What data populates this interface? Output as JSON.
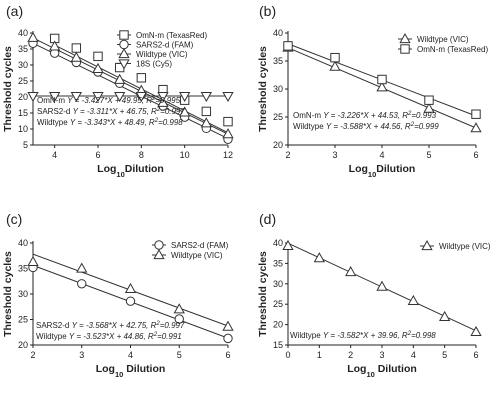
{
  "chart_data": [
    {
      "panel": "(a)",
      "type": "scatter",
      "xlabel": "Log10Dilution",
      "xlabel_main": "Log",
      "xlabel_sub": "10",
      "xlabel_rest": "Dilution",
      "ylabel": "Threshold cycles",
      "xlim": [
        3,
        12
      ],
      "ylim": [
        5,
        40
      ],
      "xticks": [
        4,
        6,
        8,
        10,
        12
      ],
      "yticks": [
        5,
        10,
        15,
        20,
        25,
        30,
        35,
        40
      ],
      "legend_position": "top-right",
      "series": [
        {
          "name": "OmN-m (TexasRed)",
          "marker": "square",
          "x": [
            4,
            5,
            6,
            7,
            8,
            9,
            10,
            11,
            12
          ],
          "y": [
            38.3,
            35.3,
            32.7,
            29.2,
            26.0,
            22.3,
            19.0,
            15.5,
            12.3
          ],
          "fit": {
            "slope": -3.427,
            "intercept": 49.95
          }
        },
        {
          "name": "SARS2-d (FAM)",
          "marker": "circle",
          "x": [
            3,
            4,
            5,
            6,
            7,
            8,
            9,
            10,
            11,
            12
          ],
          "y": [
            36.8,
            33.7,
            30.8,
            27.8,
            24.3,
            20.7,
            17.2,
            13.7,
            10.2,
            6.8
          ],
          "fit": {
            "slope": -3.311,
            "intercept": 46.75
          }
        },
        {
          "name": "Wildtype (VIC)",
          "marker": "triangle-up",
          "x": [
            3,
            4,
            5,
            6,
            7,
            8,
            9,
            10,
            11,
            12
          ],
          "y": [
            38.5,
            35.8,
            32.3,
            28.8,
            25.4,
            22.0,
            18.2,
            15.2,
            11.8,
            8.4
          ],
          "fit": {
            "slope": -3.343,
            "intercept": 48.49
          }
        },
        {
          "name": "18S (Cy5)",
          "marker": "triangle-down",
          "x": [
            3,
            4,
            5,
            6,
            7,
            8,
            9,
            10,
            11,
            12
          ],
          "y": [
            20.3,
            20.3,
            20.3,
            20.3,
            20.3,
            20.3,
            20.3,
            20.3,
            20.3,
            20.3
          ],
          "fit": {
            "slope": 0,
            "intercept": 20.3
          }
        }
      ],
      "equations": [
        {
          "name": "OmN-m",
          "text": "Y = -3.427*X + 49.95, R2=0.995",
          "lead": "OmN-m ",
          "body": "Y = -3.427*X + 49.95, R",
          "r2sup": "2",
          "tail": "=0.995"
        },
        {
          "name": "SARS2-d",
          "text": "Y = -3.311*X + 46.75, R2=0.997",
          "lead": "SARS2-d ",
          "body": "Y = -3.311*X + 46.75, R",
          "r2sup": "2",
          "tail": "=0.997"
        },
        {
          "name": "Wildtype",
          "text": "Y = -3.343*X + 48.49, R2=0.998",
          "lead": "Wildtype ",
          "body": "Y = -3.343*X + 48.49, R",
          "r2sup": "2",
          "tail": "=0.998"
        }
      ]
    },
    {
      "panel": "(b)",
      "type": "scatter",
      "xlabel": "Log10Dilution",
      "xlabel_main": "Log",
      "xlabel_sub": "10",
      "xlabel_rest": "Dilution",
      "ylabel": "Threshold cycles",
      "xlim": [
        2,
        6
      ],
      "ylim": [
        20,
        40
      ],
      "xticks": [
        2,
        3,
        4,
        5,
        6
      ],
      "yticks": [
        20,
        25,
        30,
        35,
        40
      ],
      "legend_position": "top-right",
      "series": [
        {
          "name": "Wildtype (VIC)",
          "marker": "triangle-up",
          "x": [
            2,
            3,
            4,
            5,
            6
          ],
          "y": [
            37.4,
            34.0,
            30.3,
            26.5,
            23.0
          ],
          "fit": {
            "slope": -3.588,
            "intercept": 44.56
          }
        },
        {
          "name": "OmN-m (TexasRed)",
          "marker": "square",
          "x": [
            2,
            3,
            4,
            5,
            6
          ],
          "y": [
            37.7,
            35.6,
            31.7,
            28.0,
            25.5
          ],
          "fit": {
            "slope": -3.226,
            "intercept": 44.53
          }
        }
      ],
      "equations": [
        {
          "name": "OmN-m",
          "text": "Y = -3.226*X + 44.53, R2=0.993",
          "lead": "OmN-m   ",
          "body": "Y = -3.226*X + 44.53, R",
          "r2sup": "2",
          "tail": "=0.993"
        },
        {
          "name": "Wildtype",
          "text": "Y = -3.588*X + 44.56, R2=0.999",
          "lead": "Wildtype ",
          "body": "Y = -3.588*X + 44.56, R",
          "r2sup": "2",
          "tail": "=0.999"
        }
      ]
    },
    {
      "panel": "(c)",
      "type": "scatter",
      "xlabel": "Log10 Dilution",
      "xlabel_main": "Log",
      "xlabel_sub": "10",
      "xlabel_rest": " Dilution",
      "ylabel": "Threshold cycles",
      "xlim": [
        2,
        6
      ],
      "ylim": [
        20,
        40
      ],
      "xticks": [
        2,
        3,
        4,
        5,
        6
      ],
      "yticks": [
        20,
        25,
        30,
        35,
        40
      ],
      "legend_position": "top-right",
      "series": [
        {
          "name": "SARS2-d (FAM)",
          "marker": "circle",
          "x": [
            2,
            3,
            4,
            5,
            6
          ],
          "y": [
            35.2,
            32.0,
            28.6,
            25.1,
            21.3
          ],
          "fit": {
            "slope": -3.568,
            "intercept": 42.75
          }
        },
        {
          "name": "Wildtype (VIC)",
          "marker": "triangle-up",
          "x": [
            2,
            3,
            4,
            5,
            6
          ],
          "y": [
            36.3,
            35.0,
            31.0,
            27.0,
            23.6
          ],
          "fit": {
            "slope": -3.523,
            "intercept": 44.86
          }
        }
      ],
      "equations": [
        {
          "name": "SARS2-d",
          "text": "Y = -3.568*X + 42.75, R2=0.997",
          "lead": "SARS2-d ",
          "body": "Y = -3.568*X + 42.75, R",
          "r2sup": "2",
          "tail": "=0.997"
        },
        {
          "name": "Wildtype",
          "text": "Y = -3.523*X + 44.86, R2=0.991",
          "lead": "Wildtype ",
          "body": "Y = -3.523*X + 44.86, R",
          "r2sup": "2",
          "tail": "=0.991"
        }
      ]
    },
    {
      "panel": "(d)",
      "type": "scatter",
      "xlabel": "Log10 Dilution",
      "xlabel_main": "Log",
      "xlabel_sub": "10",
      "xlabel_rest": " Dilution",
      "ylabel": "Threshold cycles",
      "xlim": [
        0,
        6
      ],
      "ylim": [
        15,
        40
      ],
      "xticks": [
        0,
        1,
        2,
        3,
        4,
        5,
        6
      ],
      "yticks": [
        15,
        20,
        25,
        30,
        35,
        40
      ],
      "legend_position": "top-right",
      "series": [
        {
          "name": "Wildtype (VIC)",
          "marker": "triangle-up",
          "x": [
            0,
            1,
            2,
            3,
            4,
            5,
            6
          ],
          "y": [
            39.3,
            36.3,
            32.9,
            29.3,
            25.8,
            21.9,
            18.2
          ],
          "fit": {
            "slope": -3.582,
            "intercept": 39.96
          }
        }
      ],
      "equations": [
        {
          "name": "Wildtype",
          "text": "Y = -3.582*X + 39.96, R2=0.998",
          "lead": "Wildtype ",
          "body": "Y = -3.582*X + 39.96, R",
          "r2sup": "2",
          "tail": "=0.998"
        }
      ]
    }
  ]
}
